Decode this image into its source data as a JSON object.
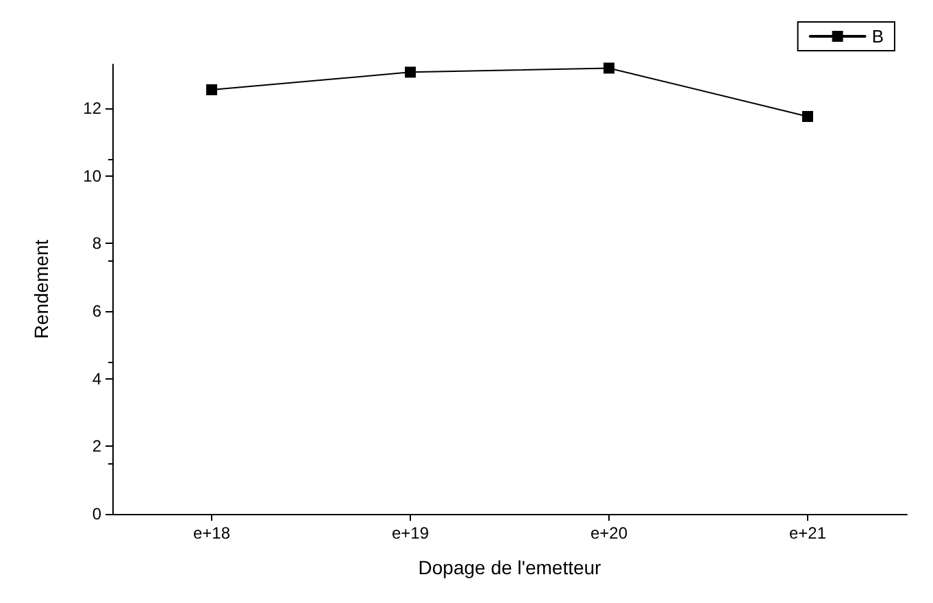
{
  "chart_data": {
    "type": "line",
    "xlabel": "Dopage de l'emetteur",
    "ylabel": "Rendement",
    "categories": [
      "e+18",
      "e+19",
      "e+20",
      "e+21"
    ],
    "series": [
      {
        "name": "B",
        "color": "#000000",
        "values": [
          12.55,
          13.07,
          13.19,
          11.76
        ]
      }
    ],
    "ylim": [
      0,
      13.3
    ],
    "yticks": [
      0,
      2,
      4,
      6,
      8,
      10,
      12
    ],
    "grid": false,
    "legend": "top right",
    "marker": "square",
    "line_style": "solid"
  }
}
